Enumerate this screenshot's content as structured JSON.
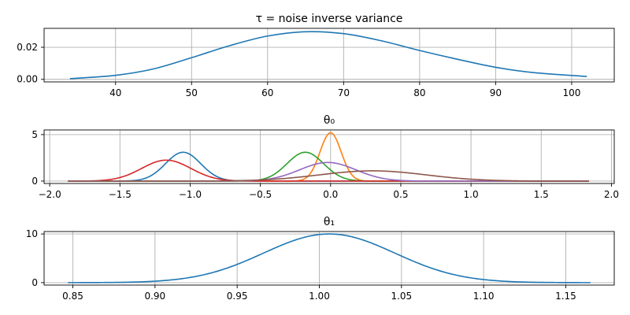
{
  "chart_data": [
    {
      "type": "line",
      "title": "τ = noise inverse variance",
      "xlim": [
        30.6,
        105.6
      ],
      "ylim": [
        -0.0016,
        0.0318
      ],
      "xticks": [
        40,
        50,
        60,
        70,
        80,
        90,
        100
      ],
      "xtick_labels": [
        "40",
        "50",
        "60",
        "70",
        "80",
        "90",
        "100"
      ],
      "yticks": [
        0.0,
        0.02
      ],
      "ytick_labels": [
        "0.00",
        "0.02"
      ],
      "grid": true,
      "series": [
        {
          "color": "#1f77b4",
          "x": [
            34,
            40,
            45,
            50,
            55,
            60,
            65,
            70,
            75,
            80,
            85,
            90,
            95,
            102
          ],
          "y": [
            0.0004,
            0.0025,
            0.0065,
            0.0135,
            0.021,
            0.027,
            0.0297,
            0.0285,
            0.024,
            0.018,
            0.0125,
            0.0075,
            0.0042,
            0.0018
          ]
        }
      ]
    },
    {
      "type": "line",
      "title": "θ₀",
      "xlim": [
        -2.04,
        2.02
      ],
      "ylim": [
        -0.26,
        5.5
      ],
      "xticks": [
        -2.0,
        -1.5,
        -1.0,
        -0.5,
        0.0,
        0.5,
        1.0,
        1.5,
        2.0
      ],
      "xtick_labels": [
        "−2.0",
        "−1.5",
        "−1.0",
        "−0.5",
        "0.0",
        "0.5",
        "1.0",
        "1.5",
        "2.0"
      ],
      "yticks": [
        0,
        5
      ],
      "ytick_labels": [
        "0",
        "5"
      ],
      "grid": true,
      "x_range": [
        -1.87,
        1.84
      ],
      "series": [
        {
          "color": "#1f77b4",
          "distribution": "normal",
          "mean": -1.05,
          "sd": 0.125,
          "peak": 3.1
        },
        {
          "color": "#ff7f0e",
          "distribution": "normal",
          "mean": 0.0,
          "sd": 0.075,
          "peak": 5.2
        },
        {
          "color": "#2ca02c",
          "distribution": "normal",
          "mean": -0.18,
          "sd": 0.13,
          "peak": 3.1
        },
        {
          "color": "#d62728",
          "distribution": "normal",
          "mean": -1.17,
          "sd": 0.175,
          "peak": 2.25
        },
        {
          "color": "#9467bd",
          "distribution": "normal",
          "mean": -0.02,
          "sd": 0.2,
          "peak": 2.0
        },
        {
          "color": "#8c564b",
          "distribution": "normal",
          "mean": 0.3,
          "sd": 0.38,
          "peak": 1.1
        }
      ]
    },
    {
      "type": "line",
      "title": "θ₁",
      "xlim": [
        0.8325,
        1.1795
      ],
      "ylim": [
        -0.5,
        10.5
      ],
      "xticks": [
        0.85,
        0.9,
        0.95,
        1.0,
        1.05,
        1.1,
        1.15
      ],
      "xtick_labels": [
        "0.85",
        "0.90",
        "0.95",
        "1.00",
        "1.05",
        "1.10",
        "1.15"
      ],
      "yticks": [
        0,
        10
      ],
      "ytick_labels": [
        "0",
        "10"
      ],
      "grid": true,
      "x_range": [
        0.847,
        1.165
      ],
      "series": [
        {
          "color": "#1f77b4",
          "distribution": "normal",
          "mean": 1.006,
          "sd": 0.04,
          "peak": 10.0
        }
      ]
    }
  ]
}
